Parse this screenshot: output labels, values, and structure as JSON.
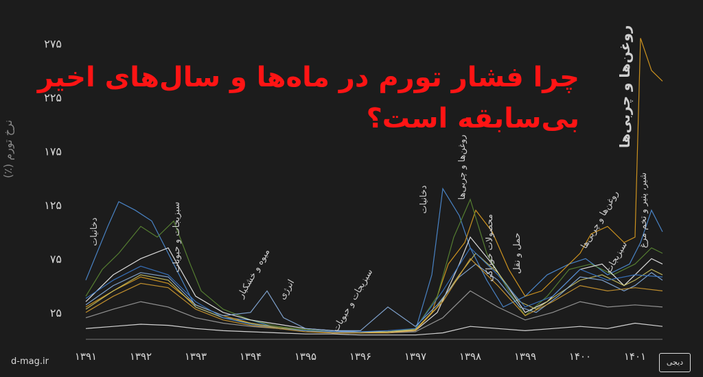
{
  "title": {
    "line1": "چرا فشار تورم در ماه‌ها و سال‌های اخیر",
    "line2": "بی‌سابقه است؟"
  },
  "site": "d-mag.ir",
  "ylabel": "نرخ تورم (٪)",
  "chart_data": {
    "type": "line",
    "title": "چرا فشار تورم در ماه‌ها و سال‌های اخیر بی‌سابقه است؟",
    "ylabel": "نرخ تورم (٪)",
    "xlabel": "",
    "ylim": [
      0,
      290
    ],
    "xlim": [
      1391,
      1401.5
    ],
    "yticks": [
      25,
      75,
      125,
      175,
      225,
      275
    ],
    "ytick_labels": [
      "۲۵",
      "۷۵",
      "۱۲۵",
      "۱۷۵",
      "۲۲۵",
      "۲۷۵"
    ],
    "xticks": [
      1391,
      1392,
      1393,
      1394,
      1395,
      1396,
      1397,
      1398,
      1399,
      1400,
      1401
    ],
    "xtick_labels": [
      "۱۳۹۱",
      "۱۳۹۲",
      "۱۳۹۳",
      "۱۳۹۴",
      "۱۳۹۵",
      "۱۳۹۶",
      "۱۳۹۷",
      "۱۳۹۸",
      "۱۳۹۹",
      "۱۴۰۰",
      "۱۴۰۱"
    ],
    "grid": false,
    "series": [
      {
        "color": "#4f8fd8",
        "x": [
          1391,
          1391.4,
          1391.6,
          1391.9,
          1392.2,
          1392.5,
          1393,
          1393.5,
          1394,
          1394.5,
          1395,
          1395.5,
          1396,
          1396.5,
          1397,
          1397.3,
          1397.5,
          1397.8,
          1398,
          1398.3,
          1398.6,
          1399,
          1399.4,
          1399.8,
          1400.1,
          1400.5,
          1400.9,
          1401.1,
          1401.3,
          1401.5
        ],
        "y": [
          55,
          105,
          128,
          120,
          110,
          80,
          30,
          20,
          18,
          10,
          8,
          6,
          6,
          7,
          8,
          60,
          140,
          115,
          85,
          55,
          30,
          40,
          60,
          70,
          75,
          60,
          70,
          90,
          120,
          100
        ]
      },
      {
        "color": "#e0a020",
        "x": [
          1391,
          1391.5,
          1392,
          1392.5,
          1393,
          1393.5,
          1394,
          1394.5,
          1395,
          1395.5,
          1396,
          1396.5,
          1397,
          1397.3,
          1397.6,
          1397.9,
          1398.1,
          1398.4,
          1398.7,
          1399,
          1399.3,
          1399.6,
          1400,
          1400.2,
          1400.5,
          1400.8,
          1401,
          1401.1,
          1401.3,
          1401.5
        ],
        "y": [
          30,
          45,
          58,
          52,
          32,
          22,
          15,
          10,
          8,
          6,
          6,
          7,
          9,
          25,
          70,
          90,
          120,
          100,
          65,
          40,
          45,
          60,
          80,
          98,
          105,
          90,
          95,
          280,
          250,
          240
        ]
      },
      {
        "color": "#5c8a34",
        "x": [
          1391,
          1391.3,
          1391.6,
          1392,
          1392.3,
          1392.6,
          1392.9,
          1393.1,
          1393.5,
          1394,
          1394.5,
          1395,
          1395.5,
          1396,
          1396.5,
          1397,
          1397.4,
          1397.7,
          1398,
          1398.3,
          1398.7,
          1399,
          1399.4,
          1399.8,
          1400.2,
          1400.6,
          1401,
          1401.3,
          1401.5
        ],
        "y": [
          40,
          65,
          80,
          105,
          95,
          110,
          70,
          45,
          28,
          18,
          12,
          9,
          7,
          6,
          7,
          10,
          40,
          95,
          130,
          80,
          45,
          22,
          40,
          65,
          70,
          60,
          70,
          85,
          80
        ]
      },
      {
        "color": "#f2f2f2",
        "x": [
          1391,
          1391.5,
          1392,
          1392.5,
          1393,
          1393.5,
          1394,
          1394.5,
          1395,
          1395.5,
          1396,
          1396.5,
          1397,
          1397.4,
          1397.8,
          1398,
          1398.4,
          1398.8,
          1399,
          1399.4,
          1399.8,
          1400,
          1400.4,
          1400.8,
          1401,
          1401.3,
          1401.5
        ],
        "y": [
          35,
          60,
          75,
          85,
          40,
          25,
          18,
          14,
          10,
          8,
          7,
          7,
          8,
          25,
          70,
          95,
          70,
          40,
          25,
          35,
          55,
          65,
          70,
          50,
          60,
          75,
          70
        ]
      },
      {
        "color": "#c8c060",
        "x": [
          1391,
          1391.5,
          1392,
          1392.5,
          1393,
          1393.5,
          1394,
          1394.5,
          1395,
          1395.5,
          1396,
          1396.5,
          1397,
          1397.4,
          1397.8,
          1398.1,
          1398.5,
          1398.9,
          1399.2,
          1399.6,
          1400,
          1400.4,
          1400.8,
          1401,
          1401.3,
          1401.5
        ],
        "y": [
          28,
          45,
          60,
          55,
          30,
          20,
          15,
          11,
          8,
          7,
          6,
          7,
          9,
          30,
          60,
          80,
          62,
          35,
          28,
          42,
          55,
          60,
          50,
          55,
          65,
          60
        ]
      },
      {
        "color": "#8ab0e0",
        "x": [
          1391,
          1391.5,
          1392,
          1392.5,
          1393,
          1393.5,
          1394,
          1394.3,
          1394.6,
          1395,
          1395.5,
          1396,
          1396.5,
          1397,
          1397.4,
          1397.8,
          1398.1,
          1398.5,
          1398.9,
          1399.2,
          1399.6,
          1400,
          1400.4,
          1400.8,
          1401,
          1401.3,
          1401.5
        ],
        "y": [
          32,
          50,
          62,
          58,
          32,
          22,
          25,
          45,
          20,
          10,
          8,
          8,
          30,
          12,
          32,
          58,
          70,
          55,
          30,
          25,
          40,
          58,
          55,
          45,
          50,
          62,
          55
        ]
      },
      {
        "color": "#a0a0a0",
        "x": [
          1391,
          1391.5,
          1392,
          1392.5,
          1393,
          1393.5,
          1394,
          1394.5,
          1395,
          1395.5,
          1396,
          1396.5,
          1397,
          1397.5,
          1398,
          1398.5,
          1399,
          1399.5,
          1400,
          1400.5,
          1401,
          1401.5
        ],
        "y": [
          20,
          28,
          35,
          30,
          20,
          15,
          12,
          10,
          8,
          7,
          6,
          6,
          7,
          20,
          45,
          30,
          18,
          25,
          35,
          30,
          32,
          30
        ]
      },
      {
        "color": "#e8e8e8",
        "x": [
          1391,
          1391.5,
          1392,
          1392.5,
          1393,
          1393.5,
          1394,
          1394.5,
          1395,
          1395.5,
          1396,
          1396.5,
          1397,
          1397.5,
          1398,
          1398.5,
          1399,
          1399.5,
          1400,
          1400.5,
          1401,
          1401.5
        ],
        "y": [
          10,
          12,
          14,
          13,
          10,
          8,
          7,
          6,
          5,
          5,
          4,
          4,
          4,
          6,
          12,
          10,
          8,
          10,
          12,
          10,
          15,
          12
        ]
      },
      {
        "color": "#3a78c8",
        "x": [
          1391,
          1391.5,
          1392,
          1392.5,
          1393,
          1393.5,
          1394,
          1394.5,
          1395,
          1395.5,
          1396,
          1396.5,
          1397,
          1397.5,
          1398,
          1398.5,
          1399,
          1399.5,
          1400,
          1400.5,
          1401,
          1401.5
        ],
        "y": [
          38,
          55,
          68,
          60,
          35,
          20,
          14,
          10,
          8,
          7,
          7,
          8,
          10,
          45,
          85,
          60,
          30,
          40,
          65,
          55,
          60,
          58
        ]
      },
      {
        "color": "#d09a30",
        "x": [
          1391,
          1391.5,
          1392,
          1392.5,
          1393,
          1393.5,
          1394,
          1394.5,
          1395,
          1395.5,
          1396,
          1396.5,
          1397,
          1397.5,
          1398,
          1398.5,
          1399,
          1399.5,
          1400,
          1400.5,
          1401,
          1401.5
        ],
        "y": [
          25,
          40,
          52,
          48,
          28,
          18,
          13,
          10,
          7,
          6,
          6,
          6,
          8,
          35,
          75,
          50,
          22,
          35,
          50,
          45,
          48,
          45
        ]
      }
    ],
    "annotations": [
      {
        "text": "دخانیات",
        "x": 1391.2,
        "y": 100,
        "rotate": -90
      },
      {
        "text": "سبزیجات و حبوبات",
        "x": 1392.7,
        "y": 95,
        "rotate": -90
      },
      {
        "text": "میوه و خشکبار",
        "x": 1394.1,
        "y": 60,
        "rotate": -60
      },
      {
        "text": "انرژی",
        "x": 1394.7,
        "y": 45,
        "rotate": -60
      },
      {
        "text": "سبزیجات و حبوبات",
        "x": 1395.9,
        "y": 35,
        "rotate": -60
      },
      {
        "text": "دخانیات",
        "x": 1397.2,
        "y": 130,
        "rotate": -90
      },
      {
        "text": "روغن‌ها و چربی‌ها",
        "x": 1397.9,
        "y": 160,
        "rotate": -90
      },
      {
        "text": "محصولات خوراکی",
        "x": 1398.4,
        "y": 85,
        "rotate": -90
      },
      {
        "text": "حمل و نقل",
        "x": 1398.9,
        "y": 80,
        "rotate": -90
      },
      {
        "text": "روغن‌ها و چربی‌ها",
        "x": 1400.4,
        "y": 110,
        "rotate": -60
      },
      {
        "text": "سبزیجات",
        "x": 1400.7,
        "y": 75,
        "rotate": -60
      },
      {
        "text": "روغن‌ها و چربی‌ها",
        "x": 1400.9,
        "y": 235,
        "rotate": -90
      },
      {
        "text": "شیر، پنیر و تخم مرغ",
        "x": 1401.2,
        "y": 120,
        "rotate": -90
      }
    ]
  }
}
